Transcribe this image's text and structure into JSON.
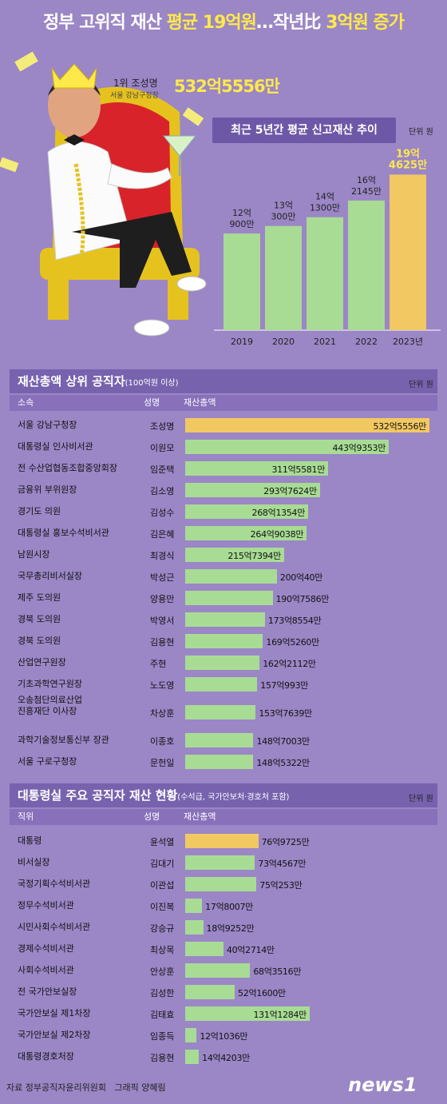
{
  "title": {
    "part1": "정부 고위직 재산 ",
    "hl1": "평균 19억원",
    "part2": "…작년比 ",
    "hl2": "3억원 증가"
  },
  "top_person": {
    "rank_name": "1위 조성명",
    "position": "서울 강남구청장",
    "value": "532억5556만"
  },
  "chart_data": [
    {
      "type": "bar",
      "title": "최근 5년간 평균 신고재산 추이",
      "unit": "단위 원",
      "categories": [
        "2019",
        "2020",
        "2021",
        "2022",
        "2023년"
      ],
      "values": [
        12.09,
        13.03,
        14.13,
        16.2145,
        19.4625
      ],
      "value_labels": [
        [
          "12억",
          "900만"
        ],
        [
          "13억",
          "300만"
        ],
        [
          "14억",
          "1300만"
        ],
        [
          "16억",
          "2145만"
        ],
        [
          "19억",
          "4625만"
        ]
      ],
      "highlight_index": 4,
      "colors": {
        "bar": "#a8dc94",
        "highlight": "#f2c862",
        "highlight_label": "#fde94a"
      }
    },
    {
      "type": "bar",
      "orientation": "horizontal",
      "title": "재산총액 상위 공직자",
      "subtitle": "(100억원 이상)",
      "unit": "단위 원",
      "columns": [
        "소속",
        "성명",
        "재산총액"
      ],
      "rows": [
        {
          "affiliation": [
            "서울 강남구청장"
          ],
          "name": "조성명",
          "value": 532.5556,
          "label": "532억5556만"
        },
        {
          "affiliation": [
            "대통령실 인사비서관"
          ],
          "name": "이원모",
          "value": 443.9353,
          "label": "443억9353만"
        },
        {
          "affiliation": [
            "전 수산업협동조합중앙회장"
          ],
          "name": "임준택",
          "value": 311.5581,
          "label": "311억5581만"
        },
        {
          "affiliation": [
            "금융위 부위원장"
          ],
          "name": "김소영",
          "value": 293.7624,
          "label": "293억7624만"
        },
        {
          "affiliation": [
            "경기도 의원"
          ],
          "name": "김성수",
          "value": 268.1354,
          "label": "268억1354만"
        },
        {
          "affiliation": [
            "대통령실 홍보수석비서관"
          ],
          "name": "김은혜",
          "value": 264.9038,
          "label": "264억9038만"
        },
        {
          "affiliation": [
            "남원시장"
          ],
          "name": "최경식",
          "value": 215.7394,
          "label": "215억7394만"
        },
        {
          "affiliation": [
            "국무총리비서실장"
          ],
          "name": "박성근",
          "value": 200.004,
          "label": "200억40만"
        },
        {
          "affiliation": [
            "제주 도의원"
          ],
          "name": "양용만",
          "value": 190.7586,
          "label": "190억7586만"
        },
        {
          "affiliation": [
            "경북 도의원"
          ],
          "name": "박영서",
          "value": 173.8554,
          "label": "173억8554만"
        },
        {
          "affiliation": [
            "경북 도의원"
          ],
          "name": "김용현",
          "value": 169.526,
          "label": "169억5260만"
        },
        {
          "affiliation": [
            "산업연구원장"
          ],
          "name": "주현",
          "value": 162.2112,
          "label": "162억2112만"
        },
        {
          "affiliation": [
            "기초과학연구원장"
          ],
          "name": "노도영",
          "value": 157.0993,
          "label": "157억993만"
        },
        {
          "affiliation": [
            "오송첨단의료산업",
            "진흥재단 이사장"
          ],
          "name": "차상훈",
          "value": 153.7639,
          "label": "153억7639만"
        },
        {
          "affiliation": [
            "과학기술정보통신부 장관"
          ],
          "name": "이종호",
          "value": 148.7003,
          "label": "148억7003만"
        },
        {
          "affiliation": [
            "서울 구로구청장"
          ],
          "name": "문헌일",
          "value": 148.5322,
          "label": "148억5322만"
        }
      ],
      "colors": {
        "bar": "#a8dc94",
        "highlight": "#f2c862"
      }
    },
    {
      "type": "bar",
      "orientation": "horizontal",
      "title": "대통령실 주요 공직자 재산 현황",
      "subtitle": "(수석급, 국가안보처·경호처 포함)",
      "unit": "단위 원",
      "columns": [
        "직위",
        "성명",
        "재산총액"
      ],
      "rows": [
        {
          "affiliation": [
            "대통령"
          ],
          "name": "윤석열",
          "value": 76.9725,
          "label": "76억9725만"
        },
        {
          "affiliation": [
            "비서실장"
          ],
          "name": "김대기",
          "value": 73.4567,
          "label": "73억4567만"
        },
        {
          "affiliation": [
            "국정기획수석비서관"
          ],
          "name": "이관섭",
          "value": 75.0253,
          "label": "75억253만"
        },
        {
          "affiliation": [
            "정무수석비서관"
          ],
          "name": "이진복",
          "value": 17.8007,
          "label": "17억8007만"
        },
        {
          "affiliation": [
            "시민사회수석비서관"
          ],
          "name": "강승규",
          "value": 18.9252,
          "label": "18억9252만"
        },
        {
          "affiliation": [
            "경제수석비서관"
          ],
          "name": "최상목",
          "value": 40.2714,
          "label": "40억2714만"
        },
        {
          "affiliation": [
            "사회수석비서관"
          ],
          "name": "안상훈",
          "value": 68.3516,
          "label": "68억3516만"
        },
        {
          "affiliation": [
            "전 국가안보실장"
          ],
          "name": "김성한",
          "value": 52.16,
          "label": "52억1600만"
        },
        {
          "affiliation": [
            "국가안보실 제1차장"
          ],
          "name": "김태효",
          "value": 131.1284,
          "label": "131억1284만"
        },
        {
          "affiliation": [
            "국가안보실 제2차장"
          ],
          "name": "임종득",
          "value": 12.1036,
          "label": "12억1036만"
        },
        {
          "affiliation": [
            "대통령경호처장"
          ],
          "name": "김용현",
          "value": 14.4203,
          "label": "14억4203만"
        }
      ],
      "colors": {
        "bar": "#a8dc94",
        "highlight": "#f2c862"
      }
    }
  ],
  "footer": {
    "source": "자료 정부공직자윤리위원회",
    "graphic": "그래픽 양혜림",
    "logo": "news1"
  }
}
